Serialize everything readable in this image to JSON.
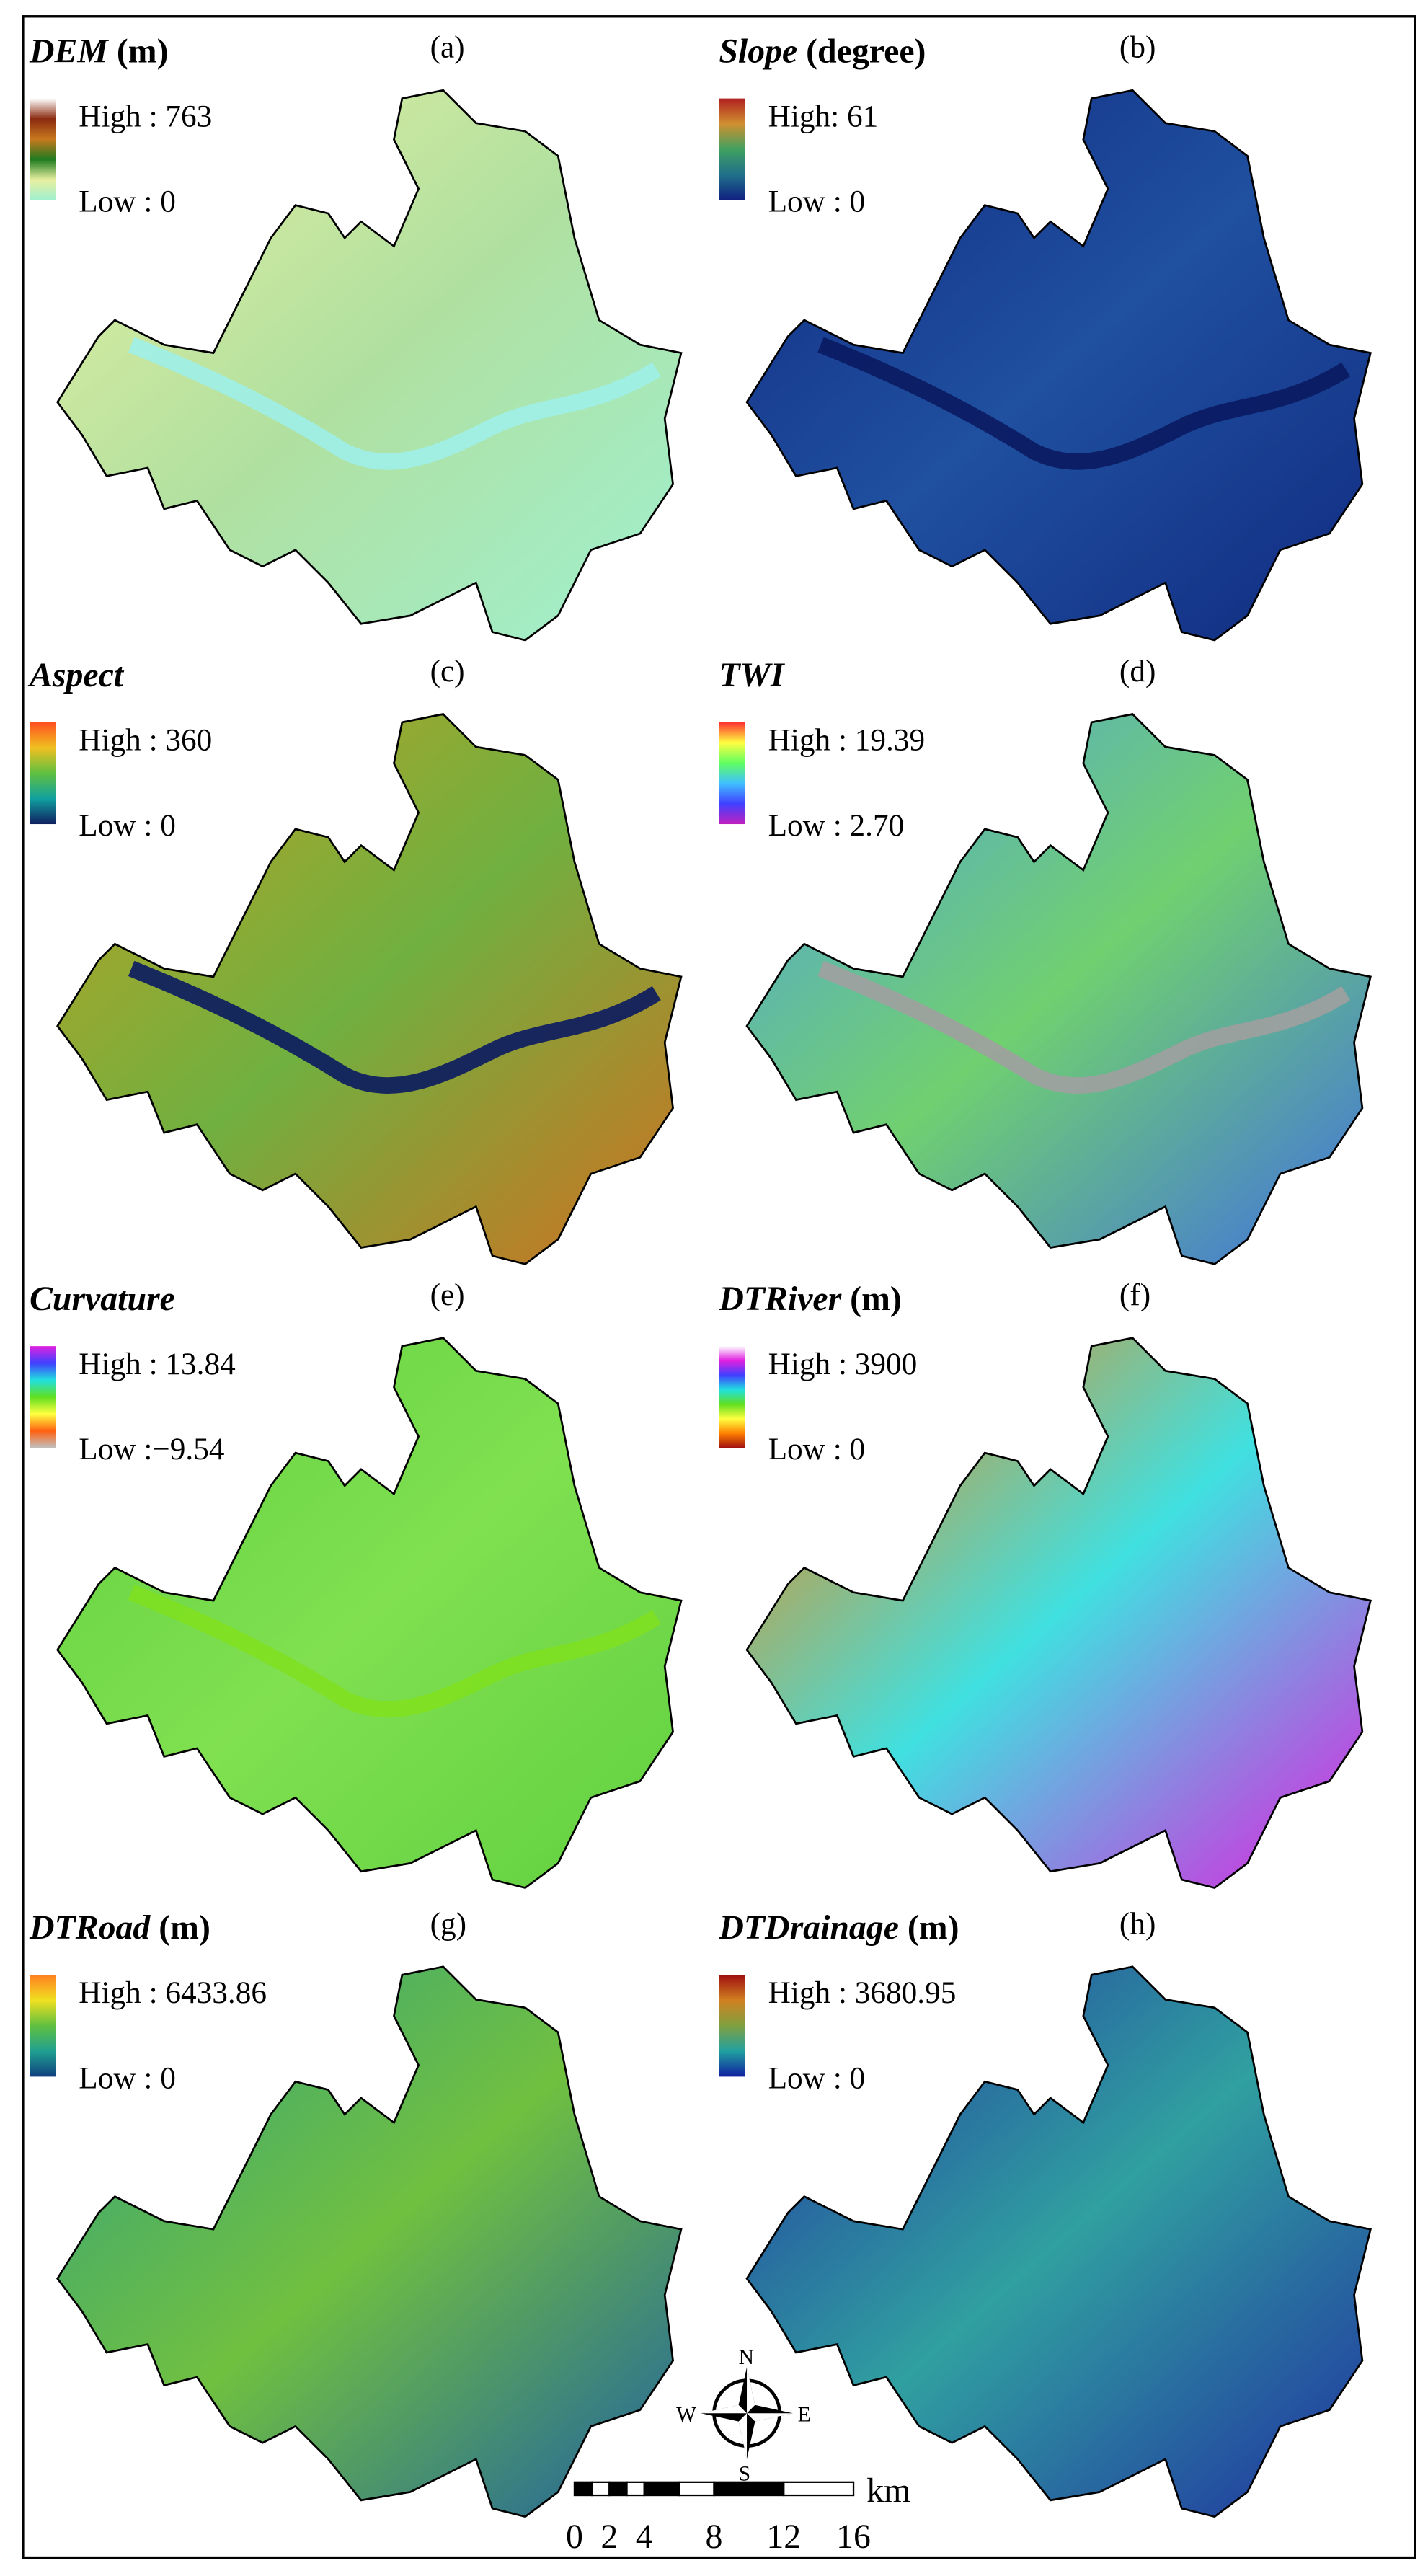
{
  "panels": [
    {
      "label": "DEM",
      "unit": "(m)",
      "letter": "(a)",
      "high": "High : 763",
      "low": "Low : 0"
    },
    {
      "label": "Slope",
      "unit": "(degree)",
      "letter": "(b)",
      "high": "High: 61",
      "low": "Low : 0"
    },
    {
      "label": "Aspect",
      "letter": "(c)",
      "high": "High : 360",
      "low": "Low : 0"
    },
    {
      "label": "TWI",
      "letter": "(d)",
      "high": "High : 19.39",
      "low": "Low : 2.70"
    },
    {
      "label": "Curvature",
      "letter": "(e)",
      "high": "High : 13.84",
      "low": "Low :−9.54"
    },
    {
      "label": "DTRiver",
      "unit": "(m)",
      "letter": "(f)",
      "high": "High : 3900",
      "low": "Low : 0"
    },
    {
      "label": "DTRoad",
      "unit": "(m)",
      "letter": "(g)",
      "high": "High : 6433.86",
      "low": "Low : 0"
    },
    {
      "label": "DTDrainage",
      "unit": "(m)",
      "letter": "(h)",
      "high": "High : 3680.95",
      "low": "Low : 0"
    }
  ],
  "scale_bar": {
    "ticks": [
      "0",
      "2",
      "4",
      "8",
      "12",
      "16"
    ],
    "unit": "km"
  },
  "compass": {
    "n": "N",
    "s": "S",
    "w": "W",
    "e": "E"
  }
}
